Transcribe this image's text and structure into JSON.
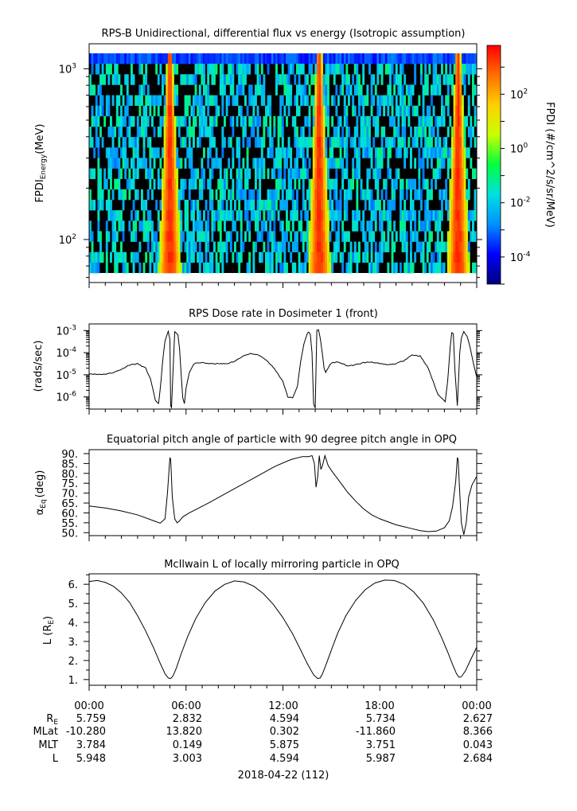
{
  "chart_data": [
    {
      "type": "heatmap",
      "title": "RPS-B  Unidirectional, differential flux vs energy (Isotropic assumption)",
      "ylabel_main": "FPDI",
      "ylabel_sub": "Energy",
      "ylabel_unit": "(MeV)",
      "ylog": true,
      "ylim": [
        56,
        1400
      ],
      "ytick_labels": [
        {
          "base": "10",
          "exp": "2",
          "value": 100
        },
        {
          "base": "10",
          "exp": "3",
          "value": 1000
        }
      ],
      "energy_rows": 21,
      "bright_band_centers_hours": [
        5.0,
        14.25,
        22.85
      ],
      "colorbar": {
        "label": "FPDI (#/cm^2/s/sr/MeV)",
        "log": true,
        "range_exp": [
          -5,
          3.8
        ],
        "tick_labels": [
          {
            "base": "10",
            "exp": "2",
            "value_exp": 2
          },
          {
            "base": "10",
            "exp": "0",
            "value_exp": 0
          },
          {
            "base": "10",
            "exp": "-2",
            "value_exp": -2
          },
          {
            "base": "10",
            "exp": "-4",
            "value_exp": -4
          }
        ],
        "colors": [
          "#00007a",
          "#0000ff",
          "#0090ff",
          "#00e0e0",
          "#00ff40",
          "#c8ff00",
          "#ffd000",
          "#ff7000",
          "#ff0000"
        ]
      }
    },
    {
      "type": "line",
      "title": "RPS  Dose rate in Dosimeter 1 (front)",
      "ylabel": "(rads/sec)",
      "ylog": true,
      "ylim_exp": [
        -6.55,
        -2.7
      ],
      "ytick_labels": [
        {
          "base": "10",
          "exp": "-3",
          "value_exp": -3
        },
        {
          "base": "10",
          "exp": "-4",
          "value_exp": -4
        },
        {
          "base": "10",
          "exp": "-5",
          "value_exp": -5
        },
        {
          "base": "10",
          "exp": "-6",
          "value_exp": -6
        }
      ],
      "x_hours": [
        0.0,
        0.5,
        1.0,
        1.5,
        2.0,
        2.5,
        3.0,
        3.5,
        3.8,
        4.1,
        4.3,
        4.45,
        4.55,
        4.7,
        4.9,
        5.0,
        5.05,
        5.1,
        5.3,
        5.5,
        5.6,
        5.7,
        5.8,
        5.9,
        6.0,
        6.2,
        6.5,
        7.0,
        7.5,
        8.0,
        8.5,
        9.0,
        9.5,
        10.0,
        10.5,
        11.0,
        11.5,
        12.0,
        12.3,
        12.6,
        12.9,
        13.1,
        13.3,
        13.5,
        13.6,
        13.7,
        13.8,
        13.9,
        14.0,
        14.1,
        14.2,
        14.3,
        14.45,
        14.55,
        14.65,
        14.75,
        14.9,
        15.1,
        15.3,
        15.6,
        16.0,
        16.5,
        17.0,
        17.5,
        18.0,
        18.5,
        19.0,
        19.5,
        20.0,
        20.5,
        21.0,
        21.3,
        21.6,
        21.85,
        22.05,
        22.2,
        22.35,
        22.45,
        22.55,
        22.65,
        22.8,
        22.95,
        23.05,
        23.2,
        23.4,
        23.6,
        23.8,
        24.0
      ],
      "y_log10": [
        -4.95,
        -4.98,
        -4.97,
        -4.9,
        -4.75,
        -4.55,
        -4.5,
        -4.7,
        -5.2,
        -6.15,
        -6.3,
        -5.3,
        -4.4,
        -3.45,
        -3.05,
        -3.4,
        -6.4,
        -6.5,
        -3.05,
        -3.2,
        -3.8,
        -5.0,
        -6.05,
        -6.3,
        -5.6,
        -4.9,
        -4.5,
        -4.45,
        -4.5,
        -4.5,
        -4.5,
        -4.4,
        -4.15,
        -4.05,
        -4.1,
        -4.35,
        -4.75,
        -5.3,
        -6.0,
        -6.05,
        -5.5,
        -4.4,
        -3.6,
        -3.15,
        -3.05,
        -3.2,
        -4.0,
        -6.3,
        -6.5,
        -3.0,
        -2.95,
        -3.3,
        -4.1,
        -4.7,
        -4.9,
        -4.75,
        -4.55,
        -4.45,
        -4.42,
        -4.47,
        -4.6,
        -4.55,
        -4.45,
        -4.42,
        -4.5,
        -4.55,
        -4.5,
        -4.35,
        -4.1,
        -4.15,
        -4.7,
        -5.3,
        -5.9,
        -6.05,
        -6.2,
        -5.3,
        -3.8,
        -3.1,
        -3.15,
        -4.8,
        -6.4,
        -4.0,
        -3.35,
        -3.05,
        -3.25,
        -3.8,
        -4.5,
        -5.1
      ]
    },
    {
      "type": "line",
      "title": "Equatorial pitch angle of particle with 90 degree pitch angle in OPQ",
      "ylabel_main": "α",
      "ylabel_sub": "Eq",
      "ylabel_unit": "(deg)",
      "ylim": [
        48.5,
        92
      ],
      "ytick_labels": [
        "50.",
        "55.",
        "60.",
        "65.",
        "70.",
        "75.",
        "80.",
        "85.",
        "90."
      ],
      "ytick_values": [
        50,
        55,
        60,
        65,
        70,
        75,
        80,
        85,
        90
      ],
      "x_hours": [
        0.0,
        1.0,
        2.0,
        3.0,
        4.0,
        4.4,
        4.7,
        4.85,
        5.0,
        5.05,
        5.15,
        5.3,
        5.45,
        5.6,
        5.8,
        6.2,
        6.8,
        7.5,
        8.5,
        9.5,
        10.5,
        11.5,
        12.5,
        13.2,
        13.6,
        13.8,
        13.95,
        14.05,
        14.15,
        14.25,
        14.35,
        14.45,
        14.6,
        14.8,
        15.0,
        15.5,
        16.0,
        16.5,
        17.0,
        17.5,
        18.0,
        18.5,
        19.0,
        19.5,
        20.0,
        20.5,
        21.0,
        21.5,
        22.0,
        22.3,
        22.5,
        22.7,
        22.8,
        22.85,
        22.95,
        23.05,
        23.2,
        23.35,
        23.5,
        23.7,
        24.0
      ],
      "y": [
        63.5,
        62.5,
        61.0,
        59.0,
        56.0,
        54.8,
        57.0,
        70.0,
        88.0,
        87.0,
        68.0,
        57.0,
        55.0,
        56.0,
        58.0,
        60.0,
        62.5,
        65.5,
        70.0,
        74.5,
        79.0,
        83.5,
        87.0,
        88.5,
        88.5,
        89.0,
        85.0,
        73.0,
        78.0,
        89.0,
        82.0,
        84.0,
        89.0,
        84.0,
        81.5,
        76.0,
        70.5,
        66.0,
        62.0,
        59.0,
        57.0,
        55.5,
        54.0,
        53.0,
        52.0,
        51.0,
        50.5,
        50.8,
        52.5,
        56.0,
        63.0,
        76.0,
        88.0,
        87.0,
        70.0,
        55.0,
        49.0,
        55.0,
        68.0,
        74.0,
        78.5
      ]
    },
    {
      "type": "line",
      "title": "McIlwain L of locally mirroring particle in OPQ",
      "ylabel_main": "L (R",
      "ylabel_sub": "E",
      "ylabel_unit": ")",
      "ylim": [
        0.7,
        6.55
      ],
      "ytick_labels": [
        "1.",
        "2.",
        "3.",
        "4.",
        "5.",
        "6."
      ],
      "ytick_values": [
        1,
        2,
        3,
        4,
        5,
        6
      ],
      "x_hours": [
        0.0,
        0.5,
        1.0,
        1.5,
        2.0,
        2.5,
        3.0,
        3.5,
        4.0,
        4.4,
        4.7,
        4.9,
        5.05,
        5.2,
        5.4,
        5.7,
        6.1,
        6.6,
        7.2,
        7.8,
        8.4,
        9.0,
        9.6,
        10.2,
        10.8,
        11.4,
        12.0,
        12.6,
        13.1,
        13.5,
        13.9,
        14.15,
        14.3,
        14.45,
        14.7,
        15.0,
        15.4,
        15.9,
        16.5,
        17.1,
        17.7,
        18.3,
        18.9,
        19.5,
        20.1,
        20.7,
        21.3,
        21.8,
        22.2,
        22.5,
        22.75,
        22.9,
        23.05,
        23.3,
        23.6,
        24.0
      ],
      "y": [
        6.15,
        6.2,
        6.1,
        5.9,
        5.55,
        5.05,
        4.35,
        3.55,
        2.65,
        1.85,
        1.3,
        1.08,
        1.05,
        1.2,
        1.6,
        2.35,
        3.25,
        4.2,
        5.05,
        5.65,
        6.0,
        6.18,
        6.12,
        5.9,
        5.5,
        4.95,
        4.25,
        3.4,
        2.55,
        1.85,
        1.25,
        1.05,
        1.08,
        1.3,
        1.85,
        2.55,
        3.45,
        4.35,
        5.15,
        5.72,
        6.07,
        6.22,
        6.2,
        6.0,
        5.6,
        5.0,
        4.15,
        3.25,
        2.45,
        1.8,
        1.3,
        1.12,
        1.15,
        1.45,
        2.0,
        2.7
      ]
    }
  ],
  "axis": {
    "x_range_hours": [
      0,
      24
    ],
    "time_labels": [
      "00:00",
      "06:00",
      "12:00",
      "18:00",
      "00:00"
    ],
    "row_labels": [
      {
        "base": "R",
        "sub": "E"
      },
      {
        "base": "MLat",
        "sub": ""
      },
      {
        "base": "MLT",
        "sub": ""
      },
      {
        "base": "L",
        "sub": ""
      }
    ],
    "rows": [
      [
        "5.759",
        "2.832",
        "4.594",
        "5.734",
        "2.627"
      ],
      [
        "-10.280",
        "13.820",
        "0.302",
        "-11.860",
        "8.366"
      ],
      [
        "3.784",
        "0.149",
        "5.875",
        "3.751",
        "0.043"
      ],
      [
        "5.948",
        "3.003",
        "4.594",
        "5.987",
        "2.684"
      ]
    ],
    "date_label": "2018-04-22 (112)"
  }
}
